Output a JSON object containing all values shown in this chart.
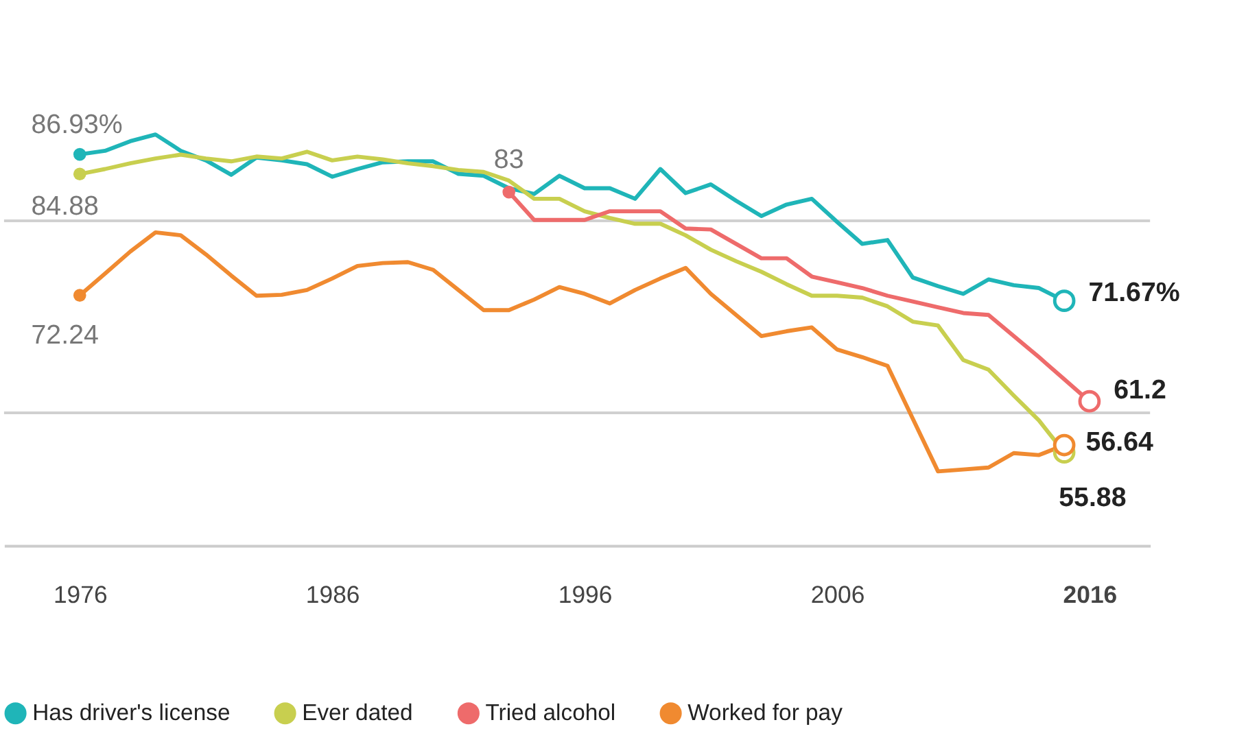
{
  "chart_data": {
    "type": "line",
    "xlim": [
      1973,
      2018.4
    ],
    "xticks": [
      1976,
      1986,
      1996,
      2006,
      2016
    ],
    "ref_lines": [
      {
        "axis": "y",
        "value": 60,
        "color": "#d0d0d0"
      },
      {
        "axis": "y",
        "value": 80,
        "color": "#d0d0d0"
      }
    ],
    "tick_labels": "x",
    "legend": "bottom",
    "line_style": "solid",
    "series": [
      {
        "name": "Has driver's license",
        "color": "#1fb5b8",
        "x": [
          1976,
          1977,
          1978,
          1979,
          1980,
          1981,
          1982,
          1983,
          1984,
          1985,
          1986,
          1987,
          1988,
          1989,
          1990,
          1991,
          1992,
          1993,
          1994,
          1995,
          1996,
          1997,
          1998,
          1999,
          2000,
          2001,
          2002,
          2003,
          2004,
          2005,
          2006,
          2007,
          2008,
          2009,
          2010,
          2011,
          2012,
          2013,
          2014,
          2015
        ],
        "values": [
          86.93,
          87.3,
          88.3,
          89.0,
          87.3,
          86.3,
          84.8,
          86.6,
          86.3,
          85.9,
          84.6,
          85.4,
          86.1,
          86.2,
          86.2,
          84.9,
          84.7,
          83.4,
          82.8,
          84.7,
          83.4,
          83.4,
          82.3,
          85.4,
          82.9,
          83.8,
          82.1,
          80.5,
          81.7,
          82.3,
          79.9,
          77.6,
          78.0,
          74.1,
          73.2,
          72.4,
          73.9,
          73.3,
          73.0,
          71.67
        ],
        "value_labels": [
          "86.93%",
          null,
          null,
          null,
          null,
          null,
          null,
          null,
          null,
          null,
          null,
          null,
          null,
          null,
          null,
          null,
          null,
          null,
          null,
          null,
          null,
          null,
          null,
          null,
          null,
          null,
          null,
          null,
          null,
          null,
          null,
          null,
          null,
          null,
          null,
          null,
          null,
          null,
          null,
          "71.67%"
        ]
      },
      {
        "name": "Ever dated",
        "color": "#c8cf4f",
        "x": [
          1976,
          1977,
          1978,
          1979,
          1980,
          1981,
          1982,
          1983,
          1984,
          1985,
          1986,
          1987,
          1988,
          1989,
          1990,
          1991,
          1992,
          1993,
          1994,
          1995,
          1996,
          1997,
          1998,
          1999,
          2000,
          2001,
          2002,
          2003,
          2004,
          2005,
          2006,
          2007,
          2008,
          2009,
          2010,
          2011,
          2012,
          2013,
          2014,
          2015
        ],
        "values": [
          84.88,
          85.4,
          86.0,
          86.5,
          86.9,
          86.5,
          86.2,
          86.7,
          86.5,
          87.2,
          86.3,
          86.7,
          86.4,
          86.0,
          85.7,
          85.3,
          85.1,
          84.2,
          82.3,
          82.3,
          81.0,
          80.3,
          79.7,
          79.7,
          78.5,
          77.0,
          75.8,
          74.7,
          73.4,
          72.2,
          72.2,
          72.0,
          71.1,
          69.5,
          69.1,
          65.5,
          64.5,
          61.8,
          59.2,
          55.88
        ],
        "value_labels": [
          "84.88",
          null,
          null,
          null,
          null,
          null,
          null,
          null,
          null,
          null,
          null,
          null,
          null,
          null,
          null,
          null,
          null,
          null,
          null,
          null,
          null,
          null,
          null,
          null,
          null,
          null,
          null,
          null,
          null,
          null,
          null,
          null,
          null,
          null,
          null,
          null,
          null,
          null,
          null,
          "55.88"
        ]
      },
      {
        "name": "Tried alcohol",
        "color": "#ee6b6b",
        "x": [
          1993,
          1994,
          1995,
          1996,
          1997,
          1998,
          1999,
          2000,
          2001,
          2002,
          2003,
          2004,
          2005,
          2006,
          2007,
          2008,
          2009,
          2010,
          2011,
          2012,
          2013,
          2014,
          2015,
          2016
        ],
        "values": [
          83,
          80.1,
          80.1,
          80.1,
          81.0,
          81.0,
          81.0,
          79.2,
          79.1,
          77.6,
          76.1,
          76.1,
          74.2,
          73.6,
          73.0,
          72.2,
          71.6,
          71.0,
          70.4,
          70.2,
          68.0,
          65.8,
          63.5,
          61.2
        ],
        "value_labels": [
          "83",
          null,
          null,
          null,
          null,
          null,
          null,
          null,
          null,
          null,
          null,
          null,
          null,
          null,
          null,
          null,
          null,
          null,
          null,
          null,
          null,
          null,
          null,
          "61.2"
        ]
      },
      {
        "name": "Worked for pay",
        "color": "#f08a30",
        "x": [
          1976,
          1977,
          1978,
          1979,
          1980,
          1981,
          1982,
          1983,
          1984,
          1985,
          1986,
          1987,
          1988,
          1989,
          1990,
          1991,
          1992,
          1993,
          1994,
          1995,
          1996,
          1997,
          1998,
          1999,
          2000,
          2001,
          2002,
          2003,
          2004,
          2005,
          2006,
          2007,
          2008,
          2009,
          2010,
          2011,
          2012,
          2013,
          2014,
          2015
        ],
        "values": [
          72.24,
          74.5,
          76.8,
          78.8,
          78.5,
          76.5,
          74.3,
          72.2,
          72.3,
          72.8,
          74.0,
          75.3,
          75.6,
          75.7,
          74.9,
          72.8,
          70.7,
          70.7,
          71.8,
          73.1,
          72.4,
          71.4,
          72.8,
          74.0,
          75.1,
          72.4,
          70.2,
          68.0,
          68.5,
          68.9,
          66.6,
          65.8,
          64.9,
          59.4,
          53.9,
          54.1,
          54.3,
          55.8,
          55.6,
          56.64
        ],
        "value_labels": [
          "72.24",
          null,
          null,
          null,
          null,
          null,
          null,
          null,
          null,
          null,
          null,
          null,
          null,
          null,
          null,
          null,
          null,
          null,
          null,
          null,
          null,
          null,
          null,
          null,
          null,
          null,
          null,
          null,
          null,
          null,
          null,
          null,
          null,
          null,
          null,
          null,
          null,
          null,
          null,
          "56.64"
        ]
      }
    ]
  }
}
